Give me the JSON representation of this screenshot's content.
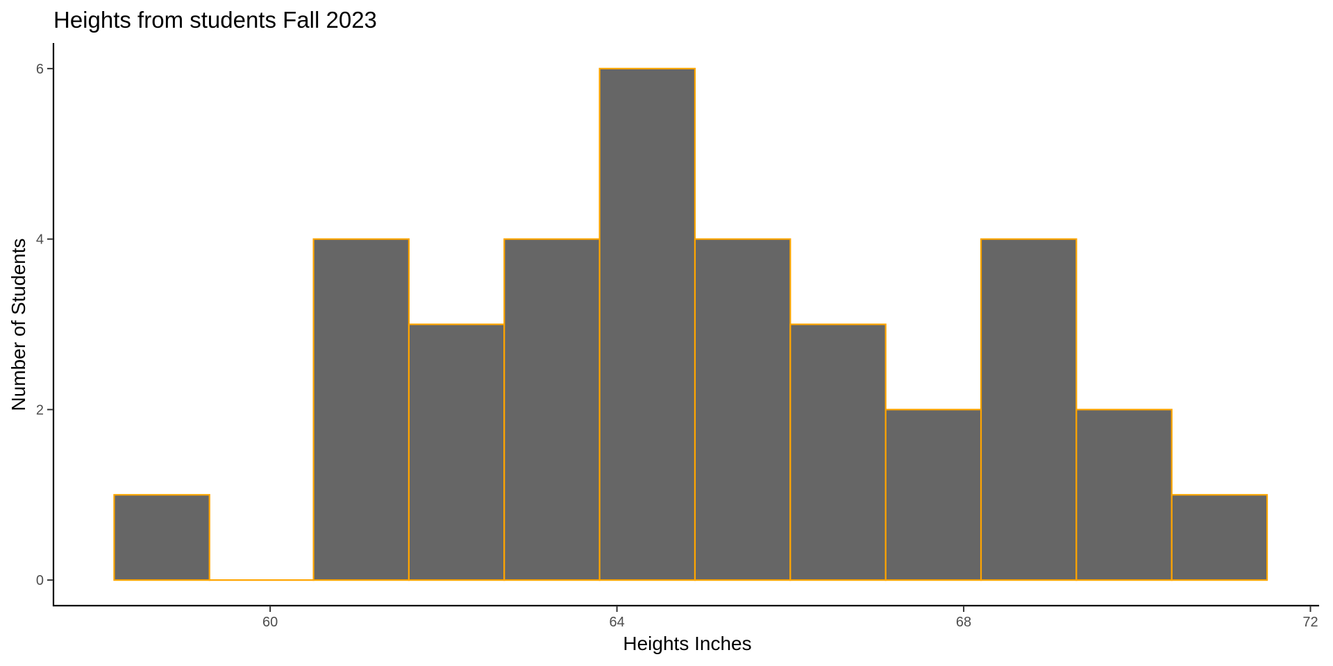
{
  "chart_data": {
    "type": "bar",
    "title": "Heights from students Fall 2023",
    "xlabel": "Heights Inches",
    "ylabel": "Number of Students",
    "bins": [
      {
        "x0": 58.2,
        "x1": 59.3,
        "count": 1
      },
      {
        "x0": 59.3,
        "x1": 60.5,
        "count": 0
      },
      {
        "x0": 60.5,
        "x1": 61.6,
        "count": 4
      },
      {
        "x0": 61.6,
        "x1": 62.7,
        "count": 3
      },
      {
        "x0": 62.7,
        "x1": 63.8,
        "count": 4
      },
      {
        "x0": 63.8,
        "x1": 64.9,
        "count": 6
      },
      {
        "x0": 64.9,
        "x1": 66.0,
        "count": 4
      },
      {
        "x0": 66.0,
        "x1": 67.1,
        "count": 3
      },
      {
        "x0": 67.1,
        "x1": 68.2,
        "count": 2
      },
      {
        "x0": 68.2,
        "x1": 69.3,
        "count": 4
      },
      {
        "x0": 69.3,
        "x1": 70.4,
        "count": 2
      },
      {
        "x0": 70.4,
        "x1": 71.5,
        "count": 1
      }
    ],
    "x_ticks": [
      60,
      64,
      68,
      72
    ],
    "y_ticks": [
      0,
      2,
      4,
      6
    ],
    "xlim": [
      57.5,
      72.1
    ],
    "ylim": [
      -0.3,
      6.3
    ],
    "grid": false,
    "legend": "none",
    "colors": {
      "fill": "#666666",
      "outline": "#FFA500",
      "axis": "#000000"
    }
  }
}
